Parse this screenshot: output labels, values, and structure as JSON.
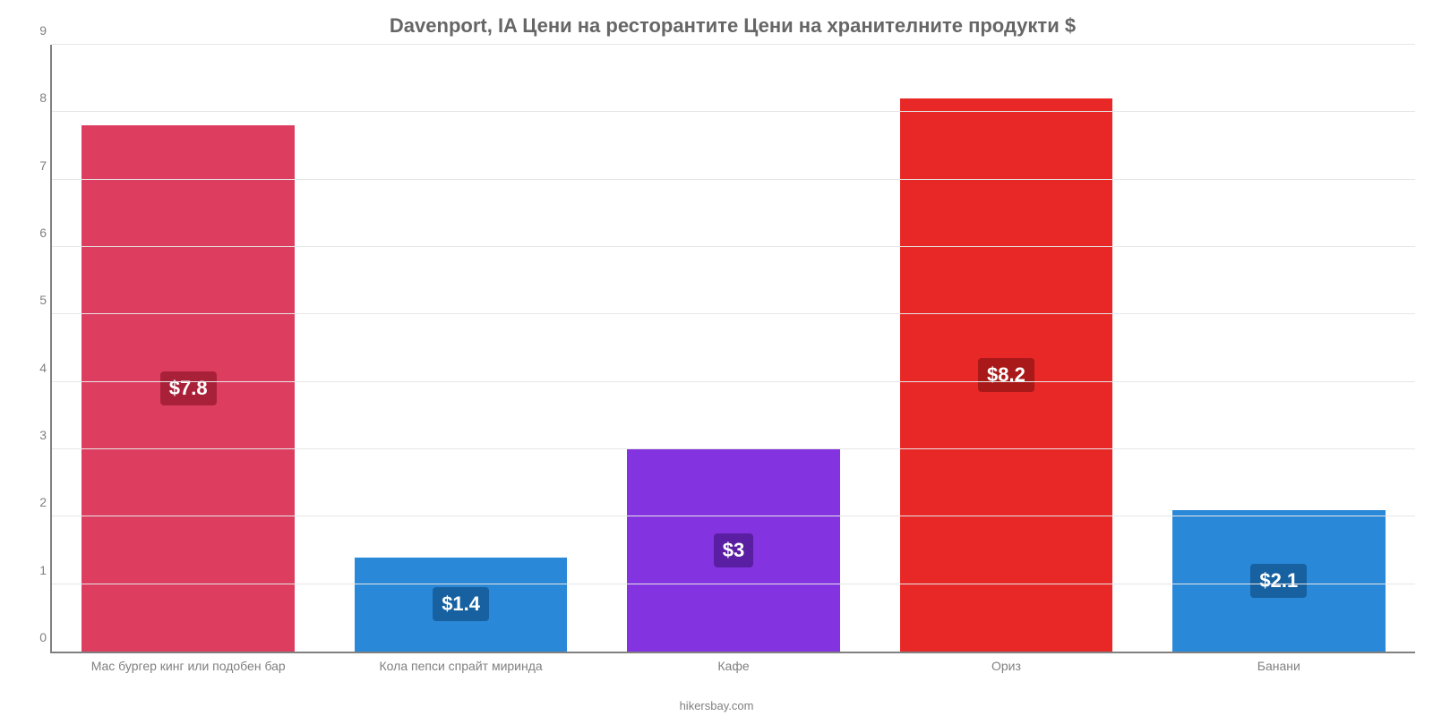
{
  "chart": {
    "type": "bar",
    "title": "Davenport, IA Цени на ресторантите Цени на хранителните продукти $",
    "title_fontsize": 22,
    "title_color": "#666666",
    "background_color": "#ffffff",
    "grid_color": "#e6e6e6",
    "axis_color": "#808080",
    "ylim": [
      0,
      9
    ],
    "ytick_step": 1,
    "yticks": [
      0,
      1,
      2,
      3,
      4,
      5,
      6,
      7,
      8,
      9
    ],
    "yaxis_label_color": "#808080",
    "yaxis_fontsize": 14,
    "xaxis_label_color": "#808080",
    "xaxis_fontsize": 14,
    "bar_width_pct": 78,
    "categories": [
      "Мас бургер кинг или подобен бар",
      "Кола пепси спрайт миринда",
      "Кафе",
      "Ориз",
      "Банани"
    ],
    "values": [
      7.8,
      1.4,
      3.0,
      8.2,
      2.1
    ],
    "value_labels": [
      "$7.8",
      "$1.4",
      "$3",
      "$8.2",
      "$2.1"
    ],
    "bar_colors": [
      "#dd3e60",
      "#2a88d8",
      "#8433e0",
      "#e82727",
      "#2a88d8"
    ],
    "label_bg_colors": [
      "#a92139",
      "#1761a1",
      "#5a1ea3",
      "#a91919",
      "#1761a1"
    ],
    "label_text_color": "#ffffff",
    "label_fontsize": 22,
    "source": "hikersbay.com"
  }
}
